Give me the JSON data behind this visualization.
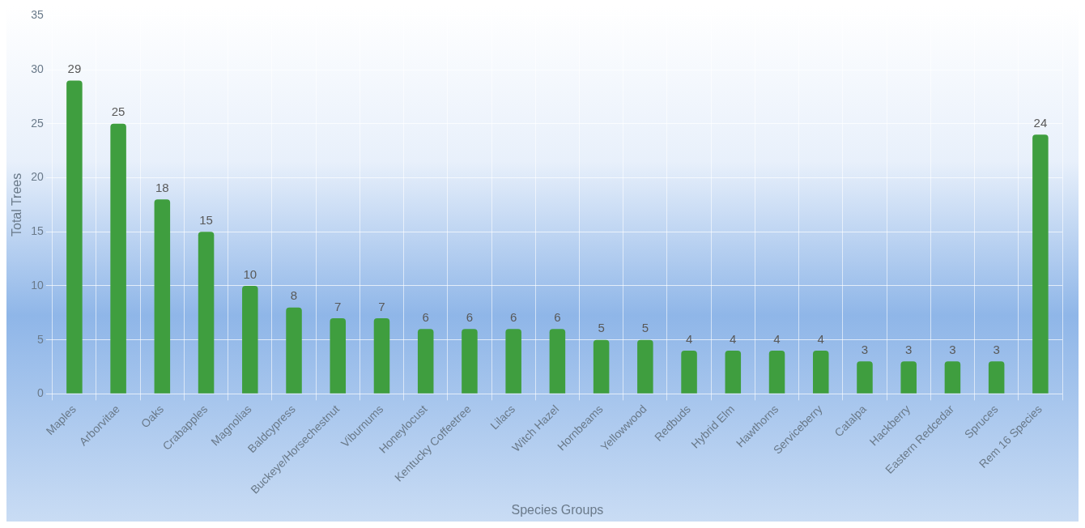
{
  "chart_data": {
    "type": "bar",
    "xlabel": "Species Groups",
    "ylabel": "Total Trees",
    "categories": [
      "Maples",
      "Arborvitae",
      "Oaks",
      "Crabapples",
      "Magnolias",
      "Baldcypress",
      "Buckeye/Horsechestnut",
      "Viburnums",
      "Honeylocust",
      "Kentucky Coffeetree",
      "Lilacs",
      "Witch Hazel",
      "Hornbeams",
      "Yellowwood",
      "Redbuds",
      "Hybrid Elm",
      "Hawthorns",
      "Serviceberry",
      "Catalpa",
      "Hackberry",
      "Eastern Redcedar",
      "Spruces",
      "Rem 16 Species"
    ],
    "values": [
      29,
      25,
      18,
      15,
      10,
      8,
      7,
      7,
      6,
      6,
      6,
      6,
      5,
      5,
      4,
      4,
      4,
      4,
      3,
      3,
      3,
      3,
      24
    ],
    "color": "#3f9e3f",
    "ylim": [
      0,
      35
    ],
    "yticks": [
      0,
      5,
      10,
      15,
      20,
      25,
      30,
      35
    ],
    "grid": true,
    "data_labels": true
  }
}
